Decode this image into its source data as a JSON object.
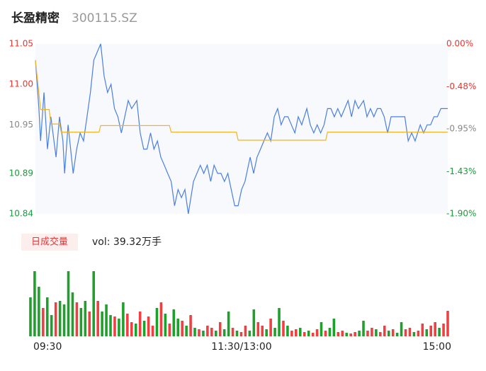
{
  "chart_data": [
    {
      "type": "line",
      "title": "长盈精密",
      "subtitle": "300115.SZ",
      "xlim": [
        0,
        240
      ],
      "xticks": [
        {
          "value": 0,
          "label": "09:30"
        },
        {
          "value": 120,
          "label": "11:30/13:00"
        },
        {
          "value": 240,
          "label": "15:00"
        }
      ],
      "ylim": [
        10.84,
        11.05
      ],
      "yticks": [
        11.05,
        {
          "value": 11,
          "label": "11.00"
        },
        10.95,
        10.89,
        10.84
      ],
      "y2lim": [
        -1.9,
        0
      ],
      "y2ticks": [
        {
          "value": 0,
          "label": "0.00%"
        },
        {
          "value": -0.48,
          "label": "-0.48%"
        },
        {
          "value": -0.95,
          "label": "-0.95%"
        },
        {
          "value": -1.43,
          "label": "-1.43%"
        },
        {
          "value": -1.9,
          "label": "-1.90%"
        }
      ],
      "series": [
        {
          "color": "#4a7fe0",
          "x": [
            0,
            2,
            3,
            5,
            7,
            9,
            12,
            14,
            16,
            17,
            19,
            22,
            24,
            26,
            28,
            30,
            32,
            34,
            36,
            38,
            40,
            42,
            44,
            46,
            48,
            50,
            52,
            54,
            56,
            59,
            61,
            63,
            65,
            67,
            69,
            71,
            73,
            75,
            77,
            79,
            81,
            83,
            85,
            87,
            89,
            92,
            94,
            96,
            98,
            100,
            102,
            104,
            106,
            108,
            110,
            112,
            114,
            116,
            118,
            120,
            122,
            125,
            127,
            129,
            131,
            133,
            135,
            137,
            139,
            141,
            143,
            145,
            147,
            149,
            151,
            153,
            155,
            158,
            160,
            162,
            164,
            166,
            168,
            170,
            172,
            174,
            176,
            178,
            180,
            182,
            184,
            186,
            188,
            191,
            193,
            195,
            197,
            199,
            201,
            203,
            205,
            207,
            209,
            211,
            213,
            215,
            217,
            219,
            221,
            224,
            226,
            228,
            230,
            232,
            234,
            236,
            240
          ],
          "values": [
            11.03,
            10.97,
            10.93,
            10.99,
            10.92,
            10.96,
            10.91,
            10.96,
            10.93,
            10.89,
            10.95,
            10.89,
            10.92,
            10.94,
            10.93,
            10.96,
            10.99,
            11.03,
            11.04,
            11.05,
            11.01,
            10.99,
            11.0,
            10.97,
            10.96,
            10.94,
            10.96,
            10.98,
            10.97,
            10.98,
            10.94,
            10.92,
            10.92,
            10.94,
            10.92,
            10.93,
            10.91,
            10.9,
            10.89,
            10.88,
            10.85,
            10.87,
            10.86,
            10.87,
            10.84,
            10.88,
            10.89,
            10.9,
            10.89,
            10.9,
            10.88,
            10.9,
            10.89,
            10.89,
            10.88,
            10.89,
            10.87,
            10.85,
            10.85,
            10.87,
            10.88,
            10.91,
            10.89,
            10.91,
            10.92,
            10.93,
            10.94,
            10.93,
            10.96,
            10.97,
            10.95,
            10.96,
            10.96,
            10.95,
            10.94,
            10.96,
            10.95,
            10.97,
            10.95,
            10.94,
            10.95,
            10.94,
            10.95,
            10.97,
            10.97,
            10.96,
            10.97,
            10.96,
            10.97,
            10.98,
            10.96,
            10.98,
            10.97,
            10.98,
            10.96,
            10.97,
            10.96,
            10.97,
            10.97,
            10.96,
            10.94,
            10.96,
            10.96,
            10.96,
            10.96,
            10.96,
            10.93,
            10.94,
            10.93,
            10.95,
            10.94,
            10.95,
            10.95,
            10.96,
            10.96,
            10.97,
            10.97
          ]
        },
        {
          "color": "#f0b429",
          "x": [
            0,
            3,
            8,
            9,
            14,
            15,
            37,
            38,
            78,
            79,
            117,
            118,
            169,
            170,
            240
          ],
          "values": [
            11.03,
            10.969,
            10.969,
            10.951,
            10.951,
            10.941,
            10.941,
            10.949,
            10.949,
            10.941,
            10.941,
            10.931,
            10.931,
            10.941,
            10.941
          ]
        }
      ]
    },
    {
      "type": "bar",
      "label": "日成交量",
      "annotation": "vol: 39.32万手",
      "ylim": [
        0,
        95
      ],
      "up_color": "#ee4040",
      "down_color": "#1fa02c",
      "values": [
        55,
        92,
        70,
        40,
        55,
        30,
        48,
        50,
        45,
        92,
        62,
        48,
        40,
        50,
        35,
        92,
        50,
        35,
        45,
        30,
        28,
        25,
        48,
        32,
        20,
        18,
        35,
        22,
        28,
        15,
        40,
        48,
        32,
        18,
        38,
        25,
        22,
        15,
        30,
        12,
        10,
        8,
        15,
        12,
        8,
        20,
        10,
        35,
        12,
        8,
        6,
        15,
        8,
        38,
        20,
        15,
        10,
        25,
        12,
        40,
        22,
        15,
        8,
        10,
        12,
        6,
        8,
        5,
        10,
        20,
        8,
        12,
        25,
        6,
        8,
        5,
        4,
        6,
        8,
        22,
        8,
        12,
        10,
        6,
        15,
        8,
        10,
        5,
        20,
        10,
        12,
        6,
        8,
        18,
        10,
        15,
        20,
        12,
        18,
        36
      ],
      "up": [
        false,
        false,
        false,
        true,
        false,
        false,
        true,
        false,
        false,
        false,
        false,
        true,
        false,
        false,
        true,
        false,
        true,
        false,
        false,
        false,
        true,
        false,
        false,
        true,
        true,
        false,
        true,
        false,
        true,
        true,
        false,
        true,
        false,
        true,
        false,
        false,
        true,
        false,
        true,
        false,
        true,
        false,
        true,
        true,
        false,
        true,
        false,
        false,
        true,
        false,
        true,
        true,
        false,
        false,
        true,
        true,
        false,
        true,
        false,
        false,
        true,
        false,
        true,
        true,
        false,
        true,
        false,
        true,
        true,
        false,
        true,
        false,
        false,
        true,
        true,
        false,
        true,
        true,
        false,
        false,
        true,
        true,
        false,
        true,
        true,
        false,
        true,
        false,
        false,
        true,
        true,
        false,
        true,
        true,
        false,
        true,
        true,
        false,
        true,
        true
      ]
    }
  ]
}
